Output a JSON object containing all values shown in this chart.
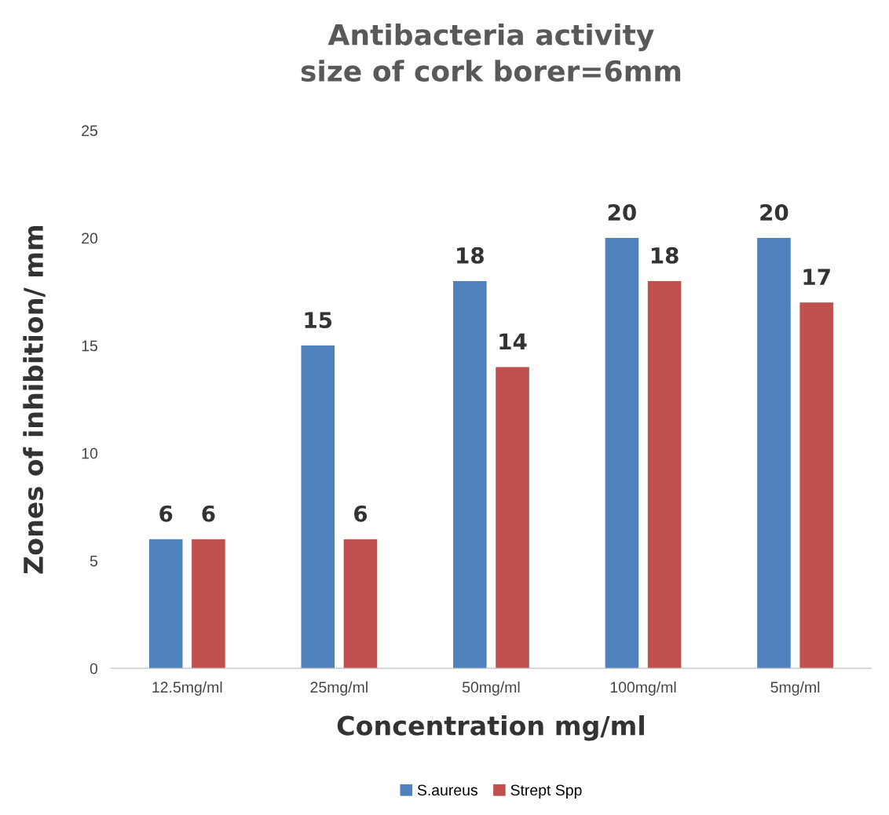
{
  "chart_data": {
    "type": "bar",
    "title": "Antibacteria activity\nsize of cork borer=6mm",
    "xlabel": "Concentration mg/ml",
    "ylabel": "Zones of inhibition/ mm",
    "categories": [
      "12.5mg/ml",
      "25mg/ml",
      "50mg/ml",
      "100mg/ml",
      "5mg/ml"
    ],
    "series": [
      {
        "name": "S.aureus",
        "color": "#4f81bd",
        "values": [
          6,
          15,
          18,
          20,
          20
        ]
      },
      {
        "name": "Strept Spp",
        "color": "#c0504d",
        "values": [
          6,
          6,
          14,
          18,
          17
        ]
      }
    ],
    "ylim": [
      0,
      25
    ],
    "yticks": [
      0,
      5,
      10,
      15,
      20,
      25
    ],
    "grid": false,
    "legend": "bottom",
    "data_labels": true
  }
}
